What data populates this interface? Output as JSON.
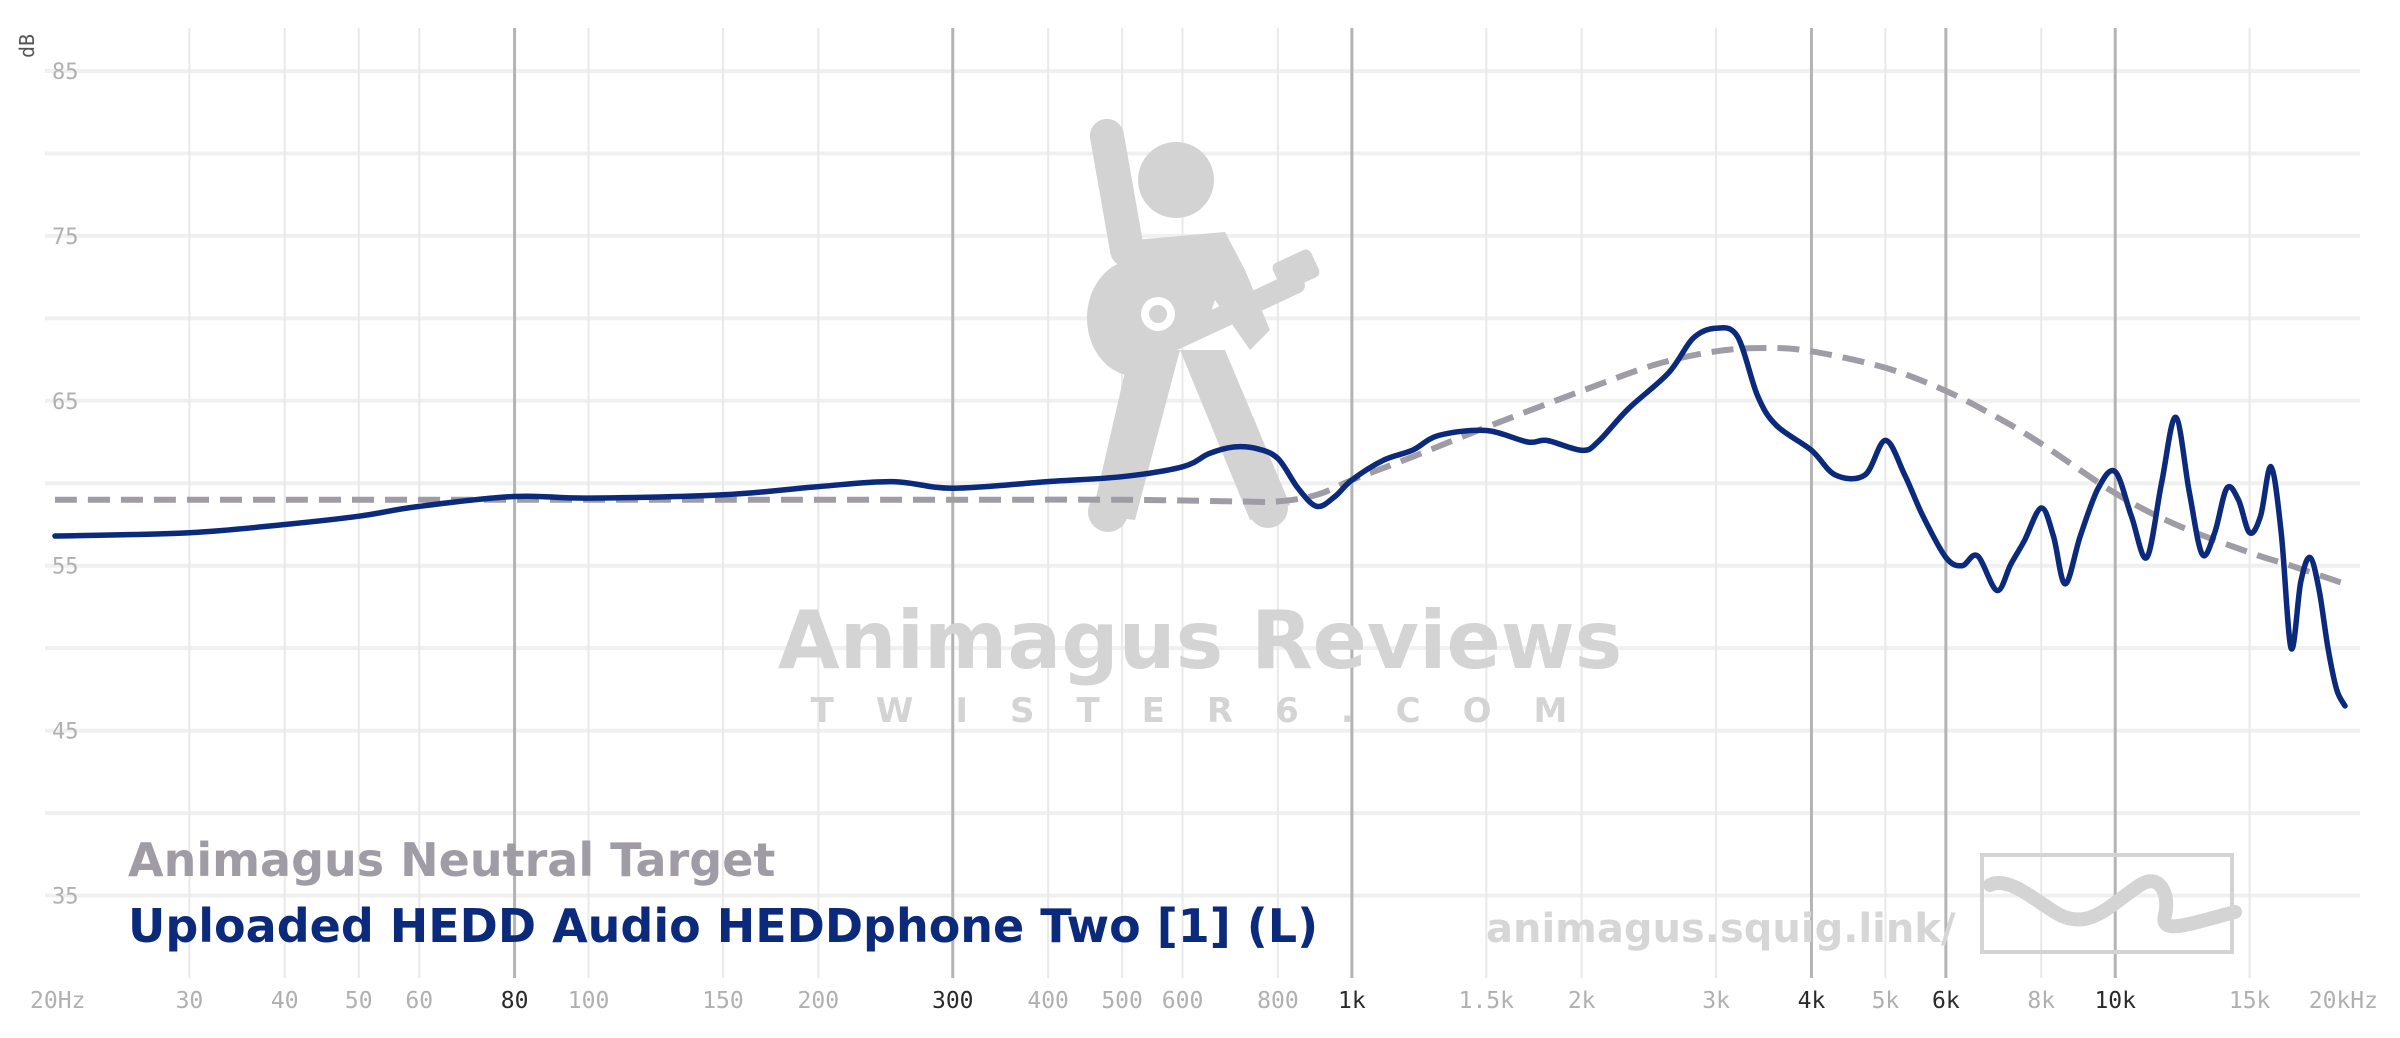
{
  "chart_data": {
    "type": "line",
    "title": "",
    "xlabel": "",
    "ylabel": "dB",
    "x_scale": "log",
    "xlim": [
      20,
      20000
    ],
    "ylim": [
      30,
      87
    ],
    "grid": true,
    "y_ticks": [
      {
        "value": 85,
        "label": "85"
      },
      {
        "value": 75,
        "label": "75"
      },
      {
        "value": 65,
        "label": "65"
      },
      {
        "value": 55,
        "label": "55"
      },
      {
        "value": 45,
        "label": "45"
      },
      {
        "value": 35,
        "label": "35"
      }
    ],
    "x_ticks": [
      {
        "value": 20,
        "label": "20Hz",
        "major": false
      },
      {
        "value": 30,
        "label": "30",
        "major": false
      },
      {
        "value": 40,
        "label": "40",
        "major": false
      },
      {
        "value": 50,
        "label": "50",
        "major": false
      },
      {
        "value": 60,
        "label": "60",
        "major": false
      },
      {
        "value": 80,
        "label": "80",
        "major": true
      },
      {
        "value": 100,
        "label": "100",
        "major": false
      },
      {
        "value": 150,
        "label": "150",
        "major": false
      },
      {
        "value": 200,
        "label": "200",
        "major": false
      },
      {
        "value": 300,
        "label": "300",
        "major": true
      },
      {
        "value": 400,
        "label": "400",
        "major": false
      },
      {
        "value": 500,
        "label": "500",
        "major": false
      },
      {
        "value": 600,
        "label": "600",
        "major": false
      },
      {
        "value": 800,
        "label": "800",
        "major": false
      },
      {
        "value": 1000,
        "label": "1k",
        "major": true
      },
      {
        "value": 1500,
        "label": "1.5k",
        "major": false
      },
      {
        "value": 2000,
        "label": "2k",
        "major": false
      },
      {
        "value": 3000,
        "label": "3k",
        "major": false
      },
      {
        "value": 4000,
        "label": "4k",
        "major": true
      },
      {
        "value": 5000,
        "label": "5k",
        "major": false
      },
      {
        "value": 6000,
        "label": "6k",
        "major": true
      },
      {
        "value": 8000,
        "label": "8k",
        "major": false
      },
      {
        "value": 10000,
        "label": "10k",
        "major": true
      },
      {
        "value": 15000,
        "label": "15k",
        "major": false
      },
      {
        "value": 20000,
        "label": "20kHz",
        "major": false
      }
    ],
    "legend": "bottom-left",
    "series": [
      {
        "name": "Animagus Neutral Target",
        "color": "#a09ca6",
        "style": "dashed",
        "x": [
          20,
          40,
          80,
          150,
          300,
          500,
          700,
          800,
          900,
          1000,
          1200,
          1500,
          2000,
          2500,
          3000,
          3500,
          4000,
          5000,
          6000,
          7000,
          8000,
          10000,
          12000,
          15000,
          17000,
          20000
        ],
        "y": [
          59,
          59,
          59,
          59,
          59,
          59,
          58.9,
          58.9,
          59.3,
          60.2,
          61.6,
          63.4,
          65.6,
          67.2,
          68.0,
          68.2,
          68.0,
          67.0,
          65.6,
          64.0,
          62.4,
          59.4,
          57.5,
          55.8,
          55.0,
          53.9
        ]
      },
      {
        "name": "Uploaded HEDD Audio HEDDphone Two [1] (L)",
        "color": "#0b2a7c",
        "style": "solid",
        "x": [
          20,
          30,
          40,
          50,
          60,
          80,
          100,
          150,
          200,
          250,
          300,
          400,
          500,
          600,
          650,
          700,
          750,
          800,
          850,
          900,
          950,
          1000,
          1100,
          1200,
          1300,
          1500,
          1700,
          1800,
          2000,
          2100,
          2300,
          2600,
          2800,
          3000,
          3200,
          3400,
          3600,
          4000,
          4300,
          4700,
          5000,
          5300,
          5600,
          6000,
          6300,
          6600,
          7000,
          7300,
          7600,
          8000,
          8300,
          8600,
          9000,
          9500,
          10000,
          10500,
          11000,
          11500,
          12000,
          12500,
          13000,
          13500,
          14000,
          14500,
          15000,
          15500,
          16000,
          16500,
          17000,
          17500,
          18000,
          18500,
          19000,
          19500,
          20000
        ],
        "y": [
          56.8,
          57.0,
          57.5,
          58.0,
          58.6,
          59.2,
          59.1,
          59.3,
          59.8,
          60.1,
          59.7,
          60.1,
          60.4,
          61.0,
          61.8,
          62.2,
          62.1,
          61.5,
          59.7,
          58.6,
          59.2,
          60.2,
          61.4,
          62.0,
          62.9,
          63.2,
          62.5,
          62.6,
          62.0,
          62.5,
          64.5,
          66.7,
          68.8,
          69.4,
          68.9,
          65.3,
          63.5,
          62.0,
          60.5,
          60.5,
          62.6,
          60.5,
          58.0,
          55.5,
          55.0,
          55.6,
          53.5,
          55.1,
          56.5,
          58.5,
          56.8,
          53.9,
          56.8,
          59.7,
          60.7,
          58.0,
          55.5,
          60.0,
          64.0,
          59.5,
          55.7,
          57.0,
          59.7,
          59.0,
          57.0,
          58.0,
          61.0,
          57.0,
          50.0,
          54.0,
          55.5,
          53.5,
          50.0,
          47.5,
          46.5
        ]
      }
    ]
  },
  "watermark": {
    "title": "Animagus Reviews",
    "subtitle": "TWISTER6.COM",
    "url": "animagus.squig.link/"
  }
}
